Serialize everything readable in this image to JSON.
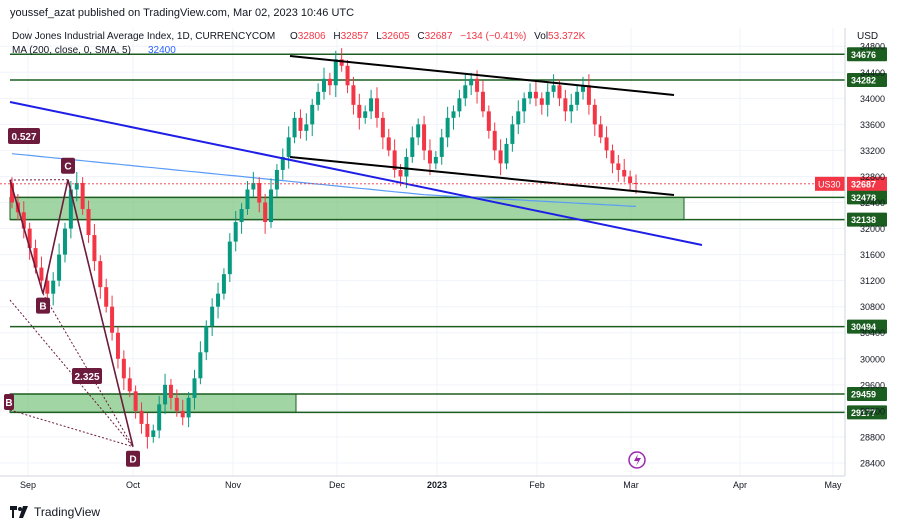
{
  "header": {
    "publisher_line": "youssef_azat published on TradingView.com, Mar 02, 2023 10:46 UTC"
  },
  "legend": {
    "symbol": "Dow Jones Industrial Average Index, 1D, CURRENCYCOM",
    "o_label": "O",
    "o_value": "32806",
    "h_label": "H",
    "h_value": "32857",
    "l_label": "L",
    "l_value": "32605",
    "c_label": "C",
    "c_value": "32687",
    "change": "−134 (−0.41%)",
    "vol_label": "Vol",
    "vol_value": "53.372K",
    "ma_label": "MA (200, close, 0, SMA, 5)",
    "ma_value": "32400"
  },
  "currency": "USD",
  "footer": {
    "brand": "TradingView"
  },
  "colors": {
    "up": "#089981",
    "down": "#f23645",
    "ma": "#5b9cf6",
    "level": "#1b5e20",
    "zone_fill": "#81c784",
    "blue_line": "#1e1ee6",
    "channel": "#000000",
    "pattern": "#6d1b3c",
    "price_tag": "#f23645"
  },
  "chart_data": {
    "type": "candlestick",
    "title": "Dow Jones Industrial Average Index, 1D, CURRENCYCOM",
    "price_axis_ticks": [
      28400,
      28800,
      29200,
      29600,
      30000,
      30400,
      30800,
      31200,
      31600,
      32000,
      32400,
      32800,
      33200,
      33600,
      34000,
      34400,
      34800
    ],
    "time_axis_labels": [
      "Sep",
      "Oct",
      "Nov",
      "Dec",
      "2023",
      "Feb",
      "Mar",
      "Apr",
      "May"
    ],
    "ylim": [
      28200,
      35080
    ],
    "horizontal_levels": [
      34676,
      34282,
      32478,
      32138,
      30494,
      29459,
      29177
    ],
    "zones": [
      {
        "from": 32138,
        "to": 32478
      },
      {
        "from": 29177,
        "to": 29459
      }
    ],
    "last_price": {
      "label": "US30",
      "value": "32687"
    },
    "pattern_points": [
      {
        "label": "C",
        "price": 32750
      },
      {
        "label": "B",
        "price": 31000
      },
      {
        "label": "D",
        "price": 28650
      }
    ],
    "annotations": [
      "0.527",
      "2.325",
      "B"
    ],
    "ma_value": 32400,
    "candles_close": [
      32400,
      32250,
      32000,
      31700,
      31400,
      31200,
      31000,
      31200,
      31600,
      32000,
      32600,
      32700,
      32300,
      31900,
      31500,
      31100,
      30800,
      30400,
      30000,
      29700,
      29500,
      29200,
      29000,
      28800,
      28900,
      29300,
      29600,
      29400,
      29200,
      29100,
      29400,
      29700,
      30100,
      30500,
      30800,
      31000,
      31300,
      31800,
      32100,
      32300,
      32600,
      32700,
      32400,
      32100,
      32600,
      32900,
      33100,
      33400,
      33700,
      33500,
      33600,
      33900,
      34100,
      34300,
      34200,
      34600,
      34500,
      34200,
      33900,
      33700,
      33800,
      34000,
      33700,
      33400,
      33200,
      32900,
      32800,
      33100,
      33400,
      33600,
      33200,
      33000,
      33100,
      33400,
      33700,
      33800,
      34000,
      34200,
      34300,
      34100,
      33800,
      33500,
      33200,
      33000,
      33300,
      33600,
      33800,
      34000,
      34100,
      34000,
      33900,
      34100,
      34200,
      34000,
      33800,
      33900,
      34100,
      34200,
      33900,
      33600,
      33400,
      33200,
      33000,
      32900,
      32800,
      32700,
      32687
    ]
  }
}
